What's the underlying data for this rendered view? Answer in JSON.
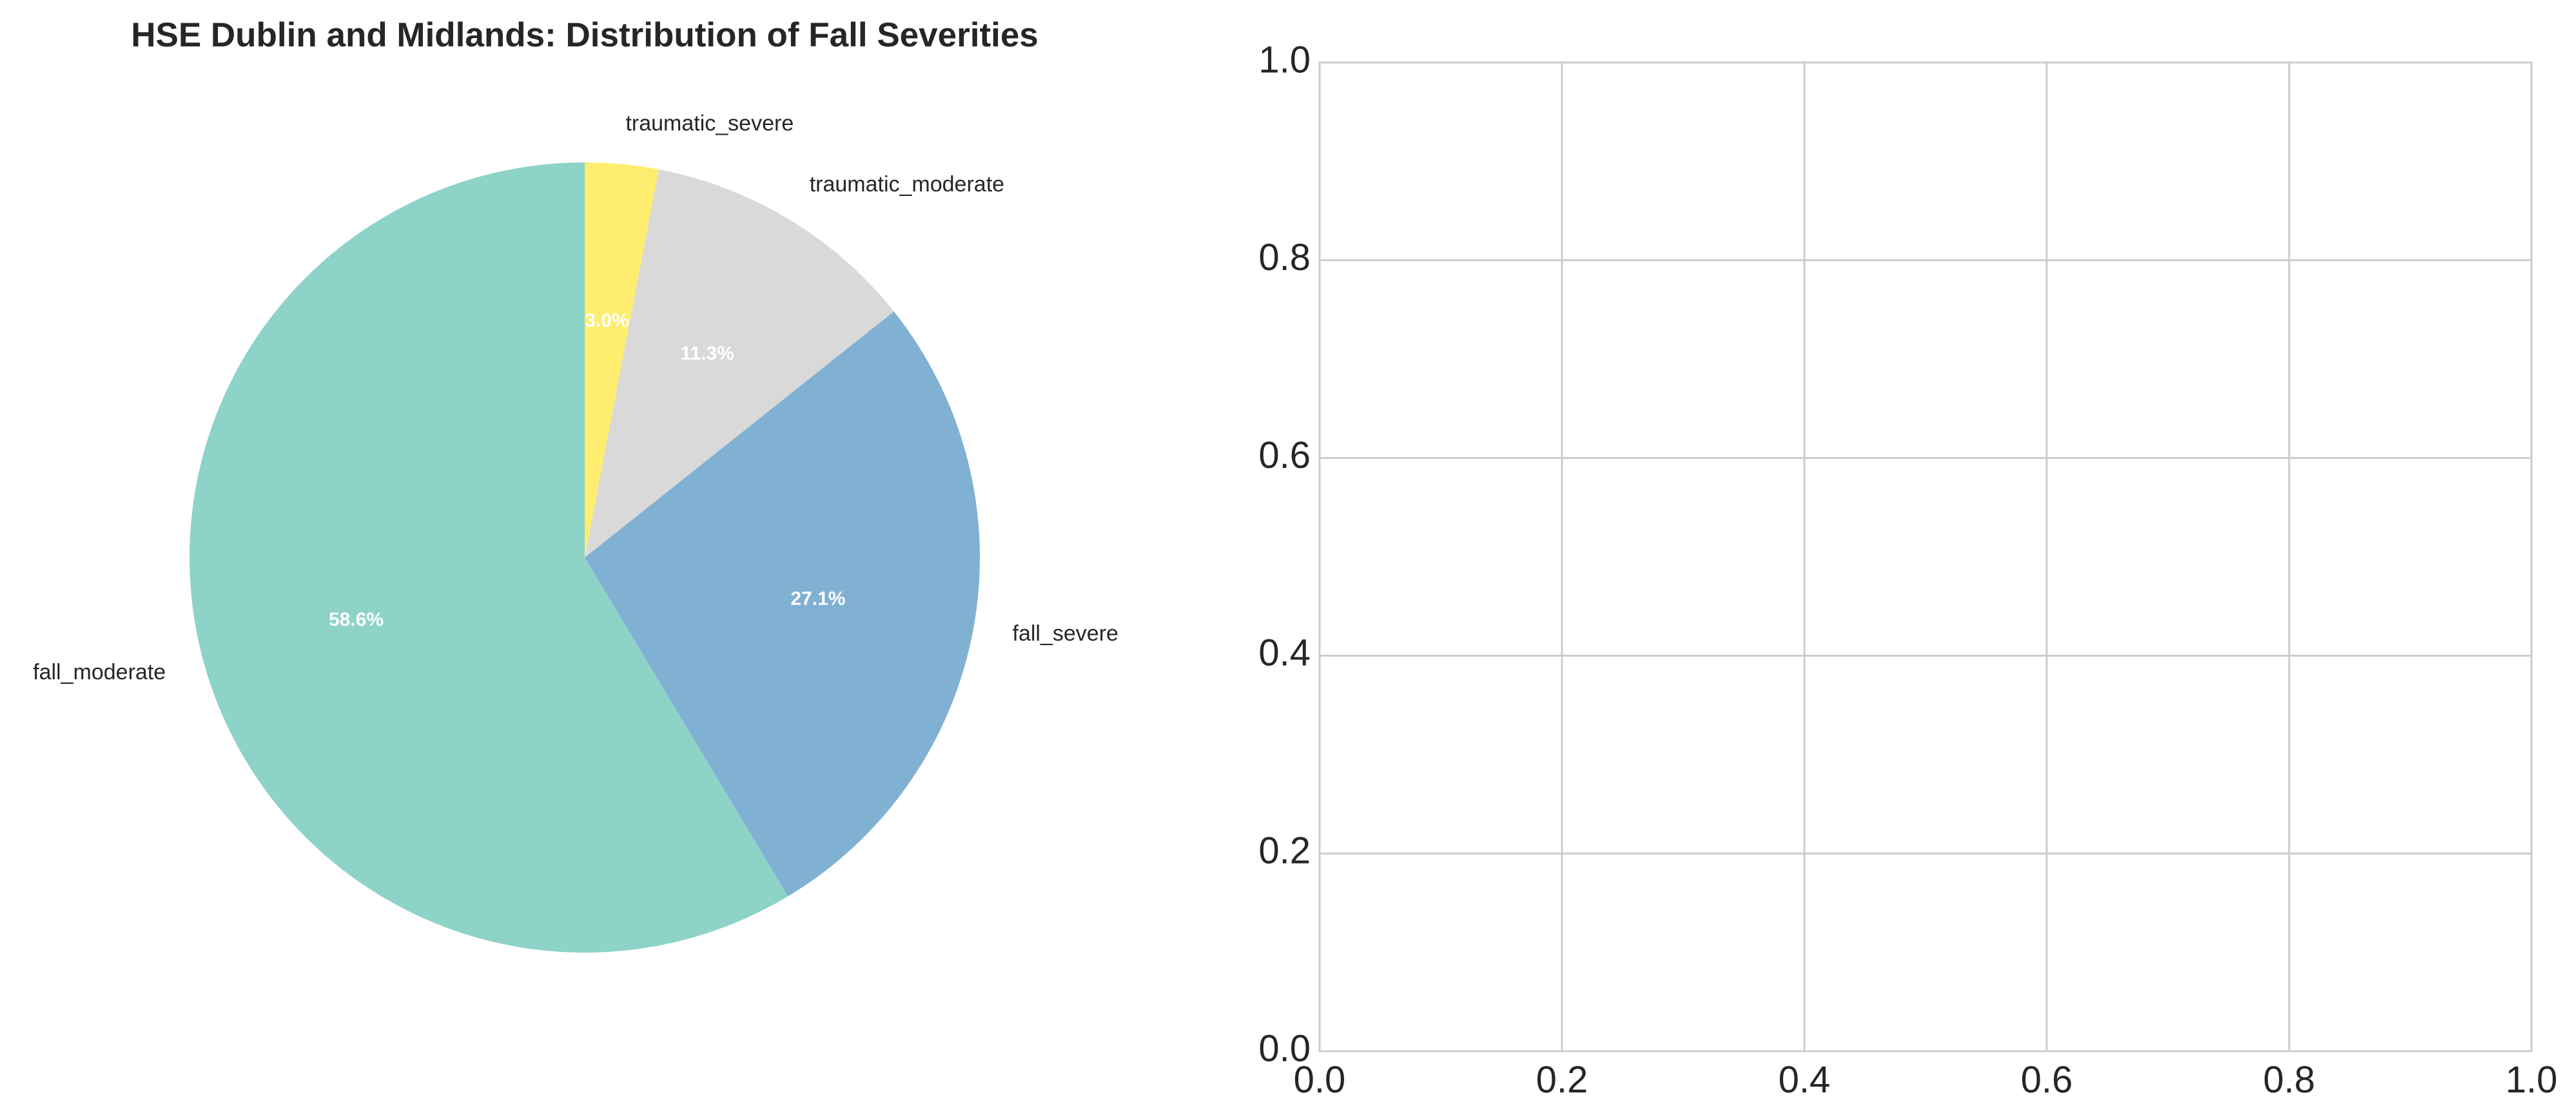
{
  "chart_data": [
    {
      "type": "pie",
      "title": "HSE Dublin and Midlands: Distribution of Fall Severities",
      "start_angle_deg": 90,
      "direction": "clockwise",
      "slices": [
        {
          "label": "fall_moderate",
          "value": 58.6,
          "pct_label": "58.6%",
          "color": "#8dd3c7"
        },
        {
          "label": "fall_severe",
          "value": 27.1,
          "pct_label": "27.1%",
          "color": "#80b1d3"
        },
        {
          "label": "traumatic_moderate",
          "value": 11.3,
          "pct_label": "11.3%",
          "color": "#d9d9d9"
        },
        {
          "label": "traumatic_severe",
          "value": 3.0,
          "pct_label": "3.0%",
          "color": "#ffed6f"
        }
      ]
    },
    {
      "type": "scatter",
      "title": "",
      "xlabel": "",
      "ylabel": "",
      "xlim": [
        0.0,
        1.0
      ],
      "ylim": [
        0.0,
        1.0
      ],
      "grid": true,
      "series": [],
      "xticks": [
        {
          "value": 0.0,
          "label": "0.0"
        },
        {
          "value": 0.2,
          "label": "0.2"
        },
        {
          "value": 0.4,
          "label": "0.4"
        },
        {
          "value": 0.6,
          "label": "0.6"
        },
        {
          "value": 0.8,
          "label": "0.8"
        },
        {
          "value": 1.0,
          "label": "1.0"
        }
      ],
      "yticks": [
        {
          "value": 0.0,
          "label": "0.0"
        },
        {
          "value": 0.2,
          "label": "0.2"
        },
        {
          "value": 0.4,
          "label": "0.4"
        },
        {
          "value": 0.6,
          "label": "0.6"
        },
        {
          "value": 0.8,
          "label": "0.8"
        },
        {
          "value": 1.0,
          "label": "1.0"
        }
      ]
    }
  ]
}
